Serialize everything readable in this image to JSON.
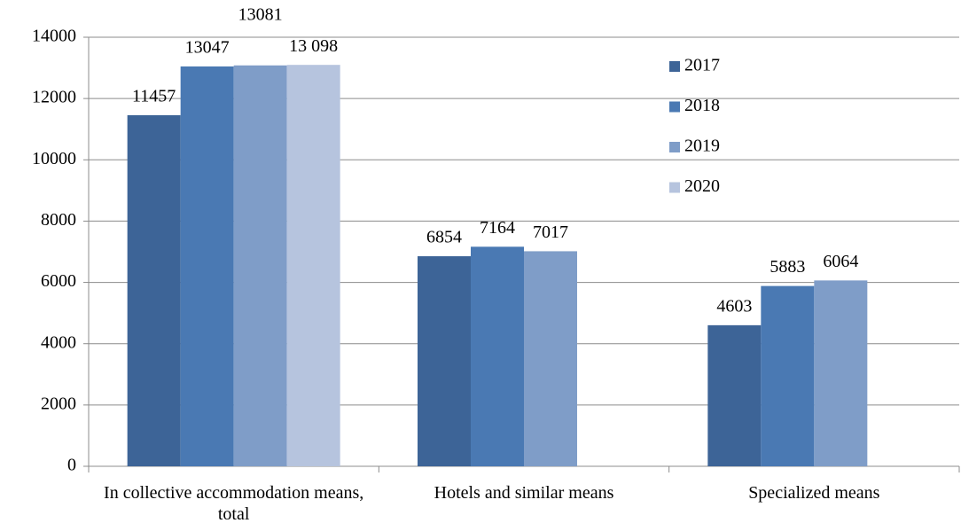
{
  "chart_data": {
    "type": "bar",
    "categories": [
      "In collective accommodation means, total",
      "Hotels and similar means",
      "Specialized means"
    ],
    "series": [
      {
        "name": "2017",
        "color": "#3d6497",
        "values": [
          11457,
          6854,
          4603
        ]
      },
      {
        "name": "2018",
        "color": "#4a79b3",
        "values": [
          13047,
          7164,
          5883
        ]
      },
      {
        "name": "2019",
        "color": "#7f9dc8",
        "values": [
          13081,
          7017,
          6064
        ]
      },
      {
        "name": "2020",
        "color": "#b6c4de",
        "values": [
          13098,
          null,
          null
        ],
        "value_labels": [
          "13 098",
          null,
          null
        ]
      }
    ],
    "ylim": [
      0,
      14000
    ],
    "yticks": [
      0,
      2000,
      4000,
      6000,
      8000,
      10000,
      12000,
      14000
    ],
    "grid": true,
    "legend": "top-right"
  }
}
